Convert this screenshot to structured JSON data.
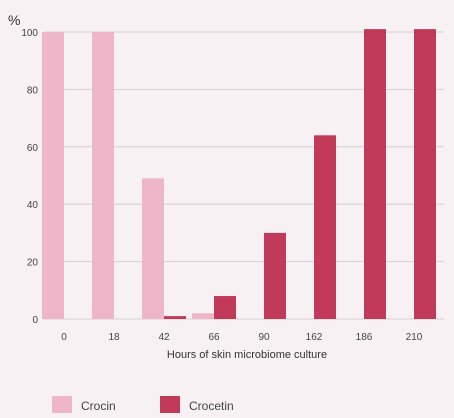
{
  "chart_data": {
    "type": "bar",
    "ylabel": "%",
    "xlabel": "Hours of skin microbiome culture",
    "categories": [
      "0",
      "18",
      "42",
      "66",
      "90",
      "162",
      "186",
      "210"
    ],
    "ylim": [
      0,
      100
    ],
    "yticks": [
      0,
      20,
      40,
      60,
      80,
      100
    ],
    "grid": true,
    "legend_position": "bottom-left",
    "series": [
      {
        "name": "Crocin",
        "color": "#efb6c9",
        "values": [
          100,
          100,
          49,
          2,
          0,
          0,
          0,
          0
        ]
      },
      {
        "name": "Crocetin",
        "color": "#c23a5a",
        "values": [
          0,
          0,
          1,
          8,
          30,
          64,
          101,
          101
        ]
      }
    ]
  }
}
